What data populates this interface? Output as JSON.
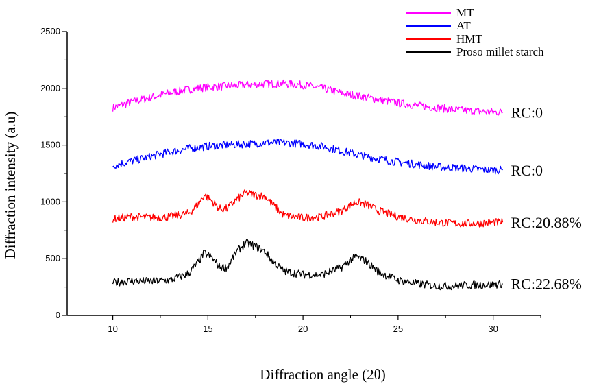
{
  "chart_data": {
    "type": "line",
    "title": "",
    "xlabel": "Diffraction angle (2θ)",
    "ylabel": "Diffraction intensity (a.u)",
    "xlim": [
      7.6,
      32.5
    ],
    "ylim": [
      0,
      2500
    ],
    "xticks": [
      10,
      15,
      20,
      25,
      30
    ],
    "yticks": [
      0,
      500,
      1000,
      1500,
      2000,
      2500
    ],
    "grid": false,
    "legend_position": "top-right",
    "series": [
      {
        "name": "MT",
        "color": "#ff00ff",
        "annotation": "RC:0",
        "points": [
          [
            10,
            1830
          ],
          [
            11,
            1880
          ],
          [
            12,
            1920
          ],
          [
            13,
            1960
          ],
          [
            14,
            1990
          ],
          [
            15,
            2010
          ],
          [
            16,
            2020
          ],
          [
            17,
            2030
          ],
          [
            18,
            2040
          ],
          [
            19,
            2040
          ],
          [
            20,
            2030
          ],
          [
            21,
            2000
          ],
          [
            22,
            1960
          ],
          [
            23,
            1930
          ],
          [
            24,
            1900
          ],
          [
            25,
            1870
          ],
          [
            26,
            1850
          ],
          [
            27,
            1830
          ],
          [
            28,
            1810
          ],
          [
            29,
            1800
          ],
          [
            30,
            1790
          ],
          [
            30.5,
            1790
          ]
        ]
      },
      {
        "name": "AT",
        "color": "#0000ff",
        "annotation": "RC:0",
        "points": [
          [
            10,
            1320
          ],
          [
            11,
            1360
          ],
          [
            12,
            1400
          ],
          [
            13,
            1440
          ],
          [
            14,
            1470
          ],
          [
            15,
            1490
          ],
          [
            16,
            1500
          ],
          [
            17,
            1510
          ],
          [
            18,
            1520
          ],
          [
            19,
            1520
          ],
          [
            20,
            1510
          ],
          [
            21,
            1490
          ],
          [
            22,
            1450
          ],
          [
            23,
            1410
          ],
          [
            24,
            1380
          ],
          [
            25,
            1350
          ],
          [
            26,
            1330
          ],
          [
            27,
            1310
          ],
          [
            28,
            1300
          ],
          [
            29,
            1290
          ],
          [
            30,
            1280
          ],
          [
            30.5,
            1280
          ]
        ]
      },
      {
        "name": "HMT",
        "color": "#ff0000",
        "annotation": "RC:20.88%",
        "points": [
          [
            10,
            850
          ],
          [
            11,
            870
          ],
          [
            12,
            860
          ],
          [
            13,
            870
          ],
          [
            14,
            900
          ],
          [
            14.5,
            980
          ],
          [
            14.8,
            1060
          ],
          [
            15.2,
            1010
          ],
          [
            15.6,
            940
          ],
          [
            16,
            940
          ],
          [
            16.5,
            1020
          ],
          [
            17,
            1080
          ],
          [
            17.5,
            1060
          ],
          [
            18,
            1050
          ],
          [
            18.5,
            960
          ],
          [
            19,
            880
          ],
          [
            20,
            860
          ],
          [
            21,
            870
          ],
          [
            22,
            920
          ],
          [
            22.5,
            970
          ],
          [
            22.8,
            1000
          ],
          [
            23.3,
            980
          ],
          [
            24,
            920
          ],
          [
            25,
            870
          ],
          [
            26,
            840
          ],
          [
            27,
            820
          ],
          [
            28,
            810
          ],
          [
            29,
            810
          ],
          [
            30,
            820
          ],
          [
            30.5,
            820
          ]
        ]
      },
      {
        "name": "Proso millet starch",
        "color": "#000000",
        "annotation": "RC:22.68%",
        "points": [
          [
            10,
            290
          ],
          [
            11,
            305
          ],
          [
            12,
            300
          ],
          [
            13,
            310
          ],
          [
            14,
            370
          ],
          [
            14.5,
            470
          ],
          [
            14.8,
            550
          ],
          [
            15.2,
            510
          ],
          [
            15.6,
            430
          ],
          [
            16,
            420
          ],
          [
            16.5,
            560
          ],
          [
            17,
            640
          ],
          [
            17.5,
            610
          ],
          [
            18,
            560
          ],
          [
            18.5,
            460
          ],
          [
            19,
            390
          ],
          [
            20,
            360
          ],
          [
            21,
            360
          ],
          [
            22,
            420
          ],
          [
            22.5,
            490
          ],
          [
            22.8,
            520
          ],
          [
            23.3,
            480
          ],
          [
            24,
            380
          ],
          [
            25,
            310
          ],
          [
            26,
            280
          ],
          [
            27,
            260
          ],
          [
            28,
            260
          ],
          [
            29,
            270
          ],
          [
            30,
            270
          ],
          [
            30.5,
            280
          ]
        ]
      }
    ]
  },
  "colors": {
    "axis": "#000000",
    "background": "#ffffff"
  }
}
